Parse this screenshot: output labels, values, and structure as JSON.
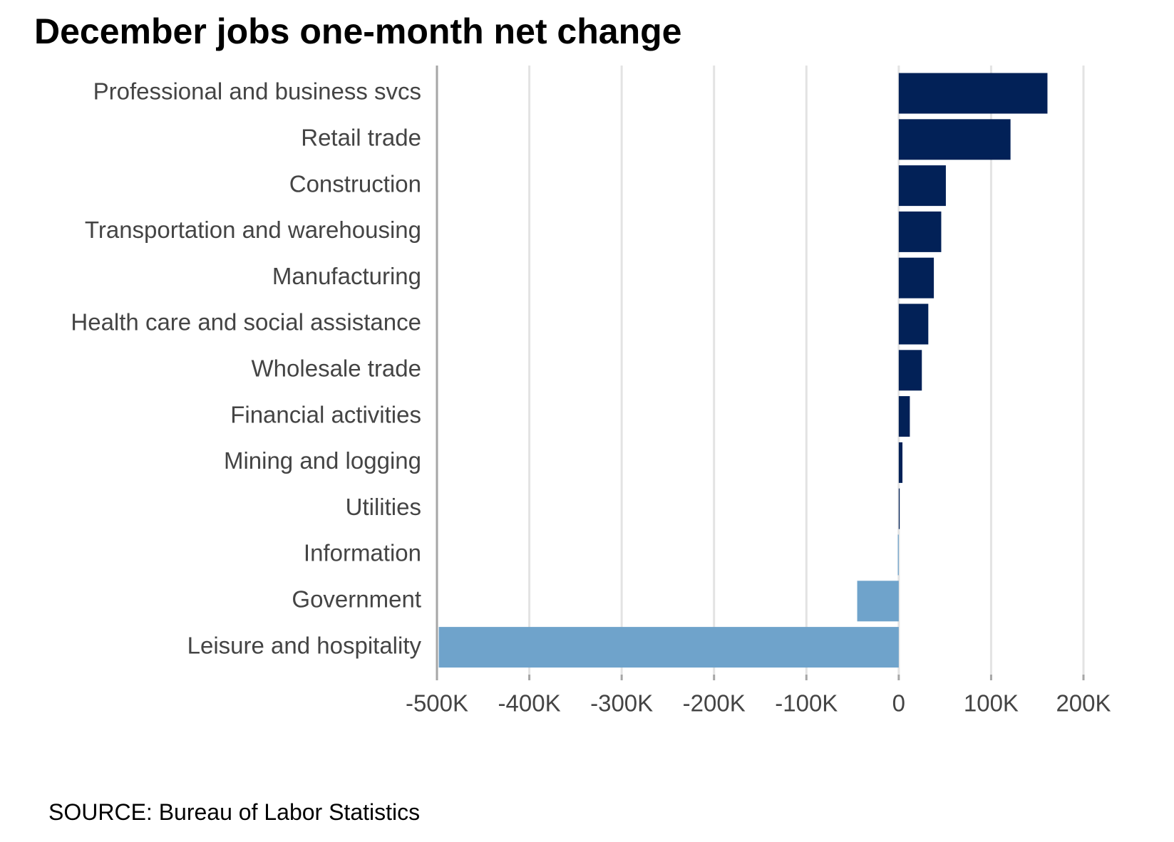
{
  "chart_data": {
    "type": "bar",
    "orientation": "horizontal",
    "title": "December jobs one-month net change",
    "source": "SOURCE: Bureau of Labor Statistics",
    "categories": [
      "Professional and business svcs",
      "Retail trade",
      "Construction",
      "Transportation and warehousing",
      "Manufacturing",
      "Health care and social assistance",
      "Wholesale trade",
      "Financial activities",
      "Mining and logging",
      "Utilities",
      "Information",
      "Government",
      "Leisure and hospitality"
    ],
    "values": [
      161000,
      121000,
      51000,
      46000,
      38000,
      32000,
      25000,
      12000,
      4000,
      1000,
      -1000,
      -45000,
      -498000
    ],
    "xlim": [
      -500000,
      200000
    ],
    "x_ticks": [
      -500000,
      -400000,
      -300000,
      -200000,
      -100000,
      0,
      100000,
      200000
    ],
    "x_tick_labels": [
      "-500K",
      "-400K",
      "-300K",
      "-200K",
      "-100K",
      "0",
      "100K",
      "200K"
    ],
    "xlabel": "",
    "ylabel": "",
    "grid": "vertical",
    "legend": "none",
    "colors": {
      "positive": "#022157",
      "negative": "#6fa3cb",
      "gridline": "#e3e3e3",
      "axis": "#a6a6a6",
      "label": "#444444"
    }
  }
}
